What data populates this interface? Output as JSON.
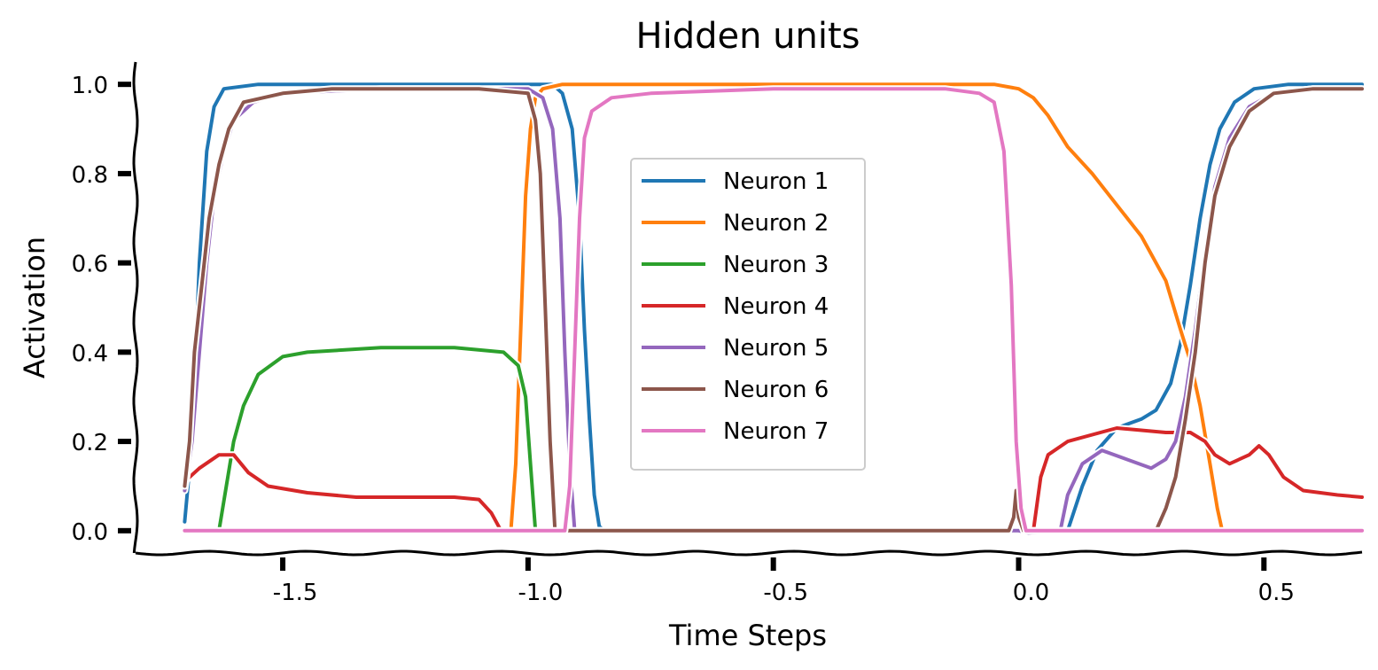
{
  "chart_data": {
    "type": "line",
    "title": "Hidden units",
    "xlabel": "Time Steps",
    "ylabel": "Activation",
    "xlim": [
      -1.8,
      0.7
    ],
    "ylim": [
      -0.05,
      1.05
    ],
    "xticks": [
      -1.5,
      -1.0,
      -0.5,
      0.0,
      0.5
    ],
    "xtick_labels": [
      "-1.5",
      "-1.0",
      "-0.5",
      "0.0",
      "0.5"
    ],
    "yticks": [
      0.0,
      0.2,
      0.4,
      0.6,
      0.8,
      1.0
    ],
    "ytick_labels": [
      "0.0",
      "0.2",
      "0.4",
      "0.6",
      "0.8",
      "1.0"
    ],
    "grid": false,
    "legend_position": "center",
    "series": [
      {
        "name": "Neuron 1",
        "color": "#1f77b4",
        "points": [
          [
            -1.7,
            0.02
          ],
          [
            -1.685,
            0.2
          ],
          [
            -1.67,
            0.6
          ],
          [
            -1.655,
            0.85
          ],
          [
            -1.64,
            0.95
          ],
          [
            -1.62,
            0.99
          ],
          [
            -1.55,
            1.0
          ],
          [
            -1.0,
            1.0
          ],
          [
            -0.95,
            1.0
          ],
          [
            -0.93,
            0.98
          ],
          [
            -0.91,
            0.9
          ],
          [
            -0.895,
            0.7
          ],
          [
            -0.885,
            0.45
          ],
          [
            -0.875,
            0.25
          ],
          [
            -0.865,
            0.08
          ],
          [
            -0.855,
            0.01
          ],
          [
            -0.845,
            0.0
          ],
          [
            0.0,
            0.0
          ],
          [
            0.1,
            0.0
          ],
          [
            0.13,
            0.1
          ],
          [
            0.16,
            0.18
          ],
          [
            0.2,
            0.23
          ],
          [
            0.25,
            0.25
          ],
          [
            0.28,
            0.27
          ],
          [
            0.31,
            0.33
          ],
          [
            0.33,
            0.42
          ],
          [
            0.35,
            0.55
          ],
          [
            0.37,
            0.7
          ],
          [
            0.39,
            0.82
          ],
          [
            0.41,
            0.9
          ],
          [
            0.44,
            0.96
          ],
          [
            0.48,
            0.99
          ],
          [
            0.55,
            1.0
          ],
          [
            0.7,
            1.0
          ]
        ]
      },
      {
        "name": "Neuron 2",
        "color": "#ff7f0e",
        "points": [
          [
            -1.035,
            0.0
          ],
          [
            -1.025,
            0.15
          ],
          [
            -1.015,
            0.45
          ],
          [
            -1.005,
            0.75
          ],
          [
            -0.995,
            0.9
          ],
          [
            -0.985,
            0.97
          ],
          [
            -0.97,
            0.99
          ],
          [
            -0.93,
            1.0
          ],
          [
            -0.5,
            1.0
          ],
          [
            -0.05,
            1.0
          ],
          [
            0.0,
            0.99
          ],
          [
            0.03,
            0.97
          ],
          [
            0.06,
            0.93
          ],
          [
            0.1,
            0.86
          ],
          [
            0.15,
            0.8
          ],
          [
            0.2,
            0.73
          ],
          [
            0.25,
            0.66
          ],
          [
            0.3,
            0.56
          ],
          [
            0.33,
            0.45
          ],
          [
            0.35,
            0.38
          ],
          [
            0.37,
            0.28
          ],
          [
            0.39,
            0.15
          ],
          [
            0.405,
            0.05
          ],
          [
            0.415,
            0.0
          ]
        ]
      },
      {
        "name": "Neuron 3",
        "color": "#2ca02c",
        "points": [
          [
            -1.63,
            0.0
          ],
          [
            -1.615,
            0.1
          ],
          [
            -1.6,
            0.2
          ],
          [
            -1.58,
            0.28
          ],
          [
            -1.55,
            0.35
          ],
          [
            -1.5,
            0.39
          ],
          [
            -1.45,
            0.4
          ],
          [
            -1.3,
            0.41
          ],
          [
            -1.15,
            0.41
          ],
          [
            -1.05,
            0.4
          ],
          [
            -1.02,
            0.37
          ],
          [
            -1.005,
            0.3
          ],
          [
            -0.995,
            0.15
          ],
          [
            -0.985,
            0.0
          ]
        ]
      },
      {
        "name": "Neuron 4",
        "color": "#d62728",
        "points": [
          [
            -1.7,
            0.11
          ],
          [
            -1.67,
            0.14
          ],
          [
            -1.63,
            0.17
          ],
          [
            -1.6,
            0.17
          ],
          [
            -1.57,
            0.13
          ],
          [
            -1.53,
            0.1
          ],
          [
            -1.45,
            0.085
          ],
          [
            -1.35,
            0.075
          ],
          [
            -1.25,
            0.075
          ],
          [
            -1.15,
            0.075
          ],
          [
            -1.1,
            0.07
          ],
          [
            -1.075,
            0.04
          ],
          [
            -1.055,
            0.0
          ],
          [
            0.03,
            0.0
          ],
          [
            0.045,
            0.12
          ],
          [
            0.06,
            0.17
          ],
          [
            0.1,
            0.2
          ],
          [
            0.2,
            0.23
          ],
          [
            0.3,
            0.22
          ],
          [
            0.35,
            0.22
          ],
          [
            0.38,
            0.2
          ],
          [
            0.4,
            0.17
          ],
          [
            0.43,
            0.15
          ],
          [
            0.47,
            0.17
          ],
          [
            0.49,
            0.19
          ],
          [
            0.51,
            0.17
          ],
          [
            0.54,
            0.12
          ],
          [
            0.58,
            0.09
          ],
          [
            0.65,
            0.08
          ],
          [
            0.7,
            0.075
          ]
        ]
      },
      {
        "name": "Neuron 5",
        "color": "#9467bd",
        "points": [
          [
            -1.7,
            0.09
          ],
          [
            -1.685,
            0.2
          ],
          [
            -1.67,
            0.4
          ],
          [
            -1.655,
            0.6
          ],
          [
            -1.64,
            0.75
          ],
          [
            -1.62,
            0.85
          ],
          [
            -1.6,
            0.92
          ],
          [
            -1.56,
            0.96
          ],
          [
            -1.5,
            0.98
          ],
          [
            -1.3,
            0.99
          ],
          [
            -1.0,
            0.99
          ],
          [
            -0.97,
            0.97
          ],
          [
            -0.95,
            0.9
          ],
          [
            -0.935,
            0.7
          ],
          [
            -0.925,
            0.4
          ],
          [
            -0.915,
            0.15
          ],
          [
            -0.905,
            0.0
          ],
          [
            0.0,
            0.0
          ],
          [
            0.02,
            -0.005
          ],
          [
            0.085,
            0.0
          ],
          [
            0.1,
            0.08
          ],
          [
            0.13,
            0.15
          ],
          [
            0.17,
            0.18
          ],
          [
            0.22,
            0.16
          ],
          [
            0.27,
            0.14
          ],
          [
            0.3,
            0.16
          ],
          [
            0.32,
            0.2
          ],
          [
            0.34,
            0.3
          ],
          [
            0.36,
            0.45
          ],
          [
            0.38,
            0.62
          ],
          [
            0.4,
            0.77
          ],
          [
            0.43,
            0.88
          ],
          [
            0.47,
            0.95
          ],
          [
            0.52,
            0.98
          ],
          [
            0.6,
            0.99
          ],
          [
            0.7,
            0.99
          ]
        ]
      },
      {
        "name": "Neuron 6",
        "color": "#8c564b",
        "points": [
          [
            -1.7,
            0.1
          ],
          [
            -1.69,
            0.2
          ],
          [
            -1.68,
            0.4
          ],
          [
            -1.665,
            0.55
          ],
          [
            -1.65,
            0.7
          ],
          [
            -1.63,
            0.82
          ],
          [
            -1.61,
            0.9
          ],
          [
            -1.58,
            0.96
          ],
          [
            -1.5,
            0.98
          ],
          [
            -1.4,
            0.99
          ],
          [
            -1.1,
            0.99
          ],
          [
            -1.0,
            0.98
          ],
          [
            -0.985,
            0.92
          ],
          [
            -0.975,
            0.8
          ],
          [
            -0.965,
            0.5
          ],
          [
            -0.955,
            0.2
          ],
          [
            -0.945,
            0.0
          ],
          [
            -0.5,
            0.0
          ],
          [
            -0.02,
            0.0
          ],
          [
            -0.01,
            0.03
          ],
          [
            -0.005,
            0.09
          ],
          [
            0.0,
            0.03
          ],
          [
            0.01,
            0.0
          ],
          [
            0.28,
            0.0
          ],
          [
            0.3,
            0.05
          ],
          [
            0.32,
            0.12
          ],
          [
            0.34,
            0.25
          ],
          [
            0.36,
            0.4
          ],
          [
            0.38,
            0.6
          ],
          [
            0.4,
            0.75
          ],
          [
            0.43,
            0.86
          ],
          [
            0.47,
            0.94
          ],
          [
            0.52,
            0.98
          ],
          [
            0.6,
            0.99
          ],
          [
            0.7,
            0.99
          ]
        ]
      },
      {
        "name": "Neuron 7",
        "color": "#e377c2",
        "points": [
          [
            -1.7,
            0.0
          ],
          [
            -1.5,
            0.0
          ],
          [
            -1.2,
            0.0
          ],
          [
            -0.925,
            0.0
          ],
          [
            -0.915,
            0.1
          ],
          [
            -0.905,
            0.4
          ],
          [
            -0.895,
            0.7
          ],
          [
            -0.885,
            0.88
          ],
          [
            -0.87,
            0.94
          ],
          [
            -0.83,
            0.97
          ],
          [
            -0.75,
            0.98
          ],
          [
            -0.5,
            0.99
          ],
          [
            -0.3,
            0.99
          ],
          [
            -0.15,
            0.99
          ],
          [
            -0.08,
            0.98
          ],
          [
            -0.05,
            0.96
          ],
          [
            -0.03,
            0.85
          ],
          [
            -0.015,
            0.55
          ],
          [
            -0.005,
            0.2
          ],
          [
            0.005,
            0.05
          ],
          [
            0.015,
            0.0
          ],
          [
            0.7,
            0.0
          ]
        ]
      }
    ]
  }
}
